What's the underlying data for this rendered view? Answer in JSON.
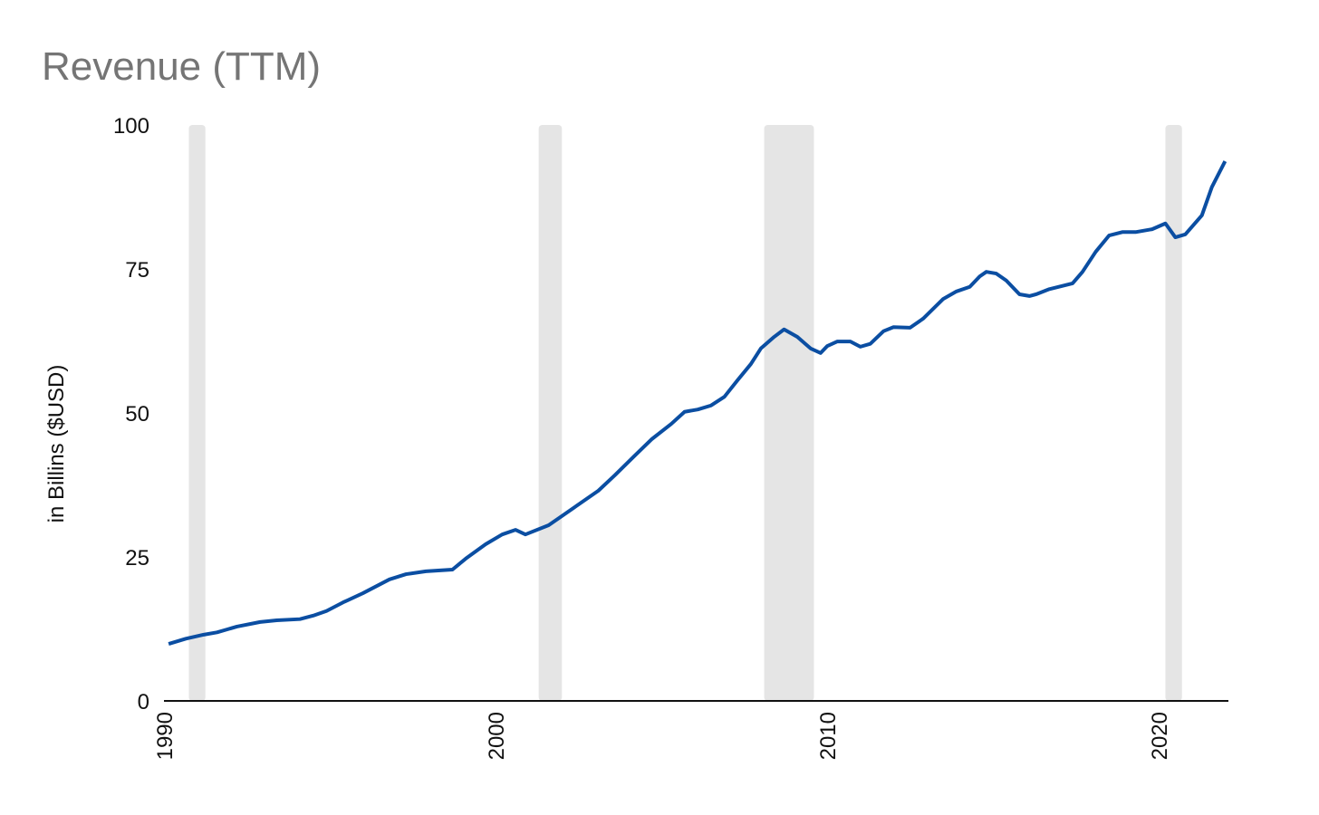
{
  "chart_data": {
    "type": "line",
    "title": "Revenue (TTM)",
    "y_label": "in Billins ($USD)",
    "x": [
      1990.14,
      1990.66,
      1991.2,
      1991.6,
      1991.9,
      1992.2,
      1992.9,
      1993.4,
      1994.1,
      1994.5,
      1994.9,
      1995.4,
      1996.0,
      1996.8,
      1997.3,
      1997.9,
      1998.7,
      1999.1,
      1999.7,
      2000.2,
      2000.6,
      2000.9,
      2001.6,
      2002.0,
      2002.5,
      2003.1,
      2003.6,
      2004.2,
      2004.7,
      2005.3,
      2005.7,
      2006.1,
      2006.5,
      2006.9,
      2007.3,
      2007.7,
      2008.0,
      2008.4,
      2008.7,
      2009.1,
      2009.5,
      2009.8,
      2010.0,
      2010.3,
      2010.7,
      2011.0,
      2011.3,
      2011.7,
      2012.0,
      2012.5,
      2012.9,
      2013.5,
      2013.9,
      2014.3,
      2014.6,
      2014.8,
      2015.1,
      2015.4,
      2015.8,
      2016.1,
      2016.3,
      2016.7,
      2017.4,
      2017.7,
      2018.1,
      2018.5,
      2018.9,
      2019.3,
      2019.8,
      2020.2,
      2020.5,
      2020.8,
      2021.3,
      2021.6,
      2022.0
    ],
    "series": [
      {
        "color": "#0b4ea2",
        "values": [
          9.9,
          10.8,
          11.5,
          11.9,
          12.4,
          12.9,
          13.7,
          14.0,
          14.2,
          14.8,
          15.6,
          17.1,
          18.7,
          21.1,
          22.0,
          22.5,
          22.8,
          24.7,
          27.2,
          28.9,
          29.7,
          28.9,
          30.5,
          32.1,
          34.1,
          36.5,
          39.2,
          42.6,
          45.4,
          48.1,
          50.2,
          50.6,
          51.3,
          52.8,
          55.7,
          58.5,
          61.2,
          63.2,
          64.5,
          63.2,
          61.2,
          60.4,
          61.6,
          62.4,
          62.4,
          61.5,
          62.0,
          64.2,
          64.9,
          64.8,
          66.4,
          69.8,
          71.1,
          71.9,
          73.7,
          74.5,
          74.2,
          73.0,
          70.6,
          70.3,
          70.6,
          71.5,
          72.5,
          74.5,
          78.0,
          80.8,
          81.4,
          81.4,
          81.9,
          82.9,
          80.5,
          81.0,
          84.3,
          89.2,
          93.7
        ]
      }
    ],
    "bands": [
      [
        1990.75,
        1991.25
      ],
      [
        2001.3,
        2002.0
      ],
      [
        2008.1,
        2009.6
      ],
      [
        2020.2,
        2020.7
      ]
    ],
    "band_color": "#e5e5e5",
    "xlim": [
      1990,
      2022.1
    ],
    "xticks": [
      1990,
      2000,
      2010,
      2020
    ],
    "ylim": [
      0,
      100
    ],
    "yticks": [
      0,
      25,
      50,
      75,
      100
    ],
    "grid": false
  }
}
